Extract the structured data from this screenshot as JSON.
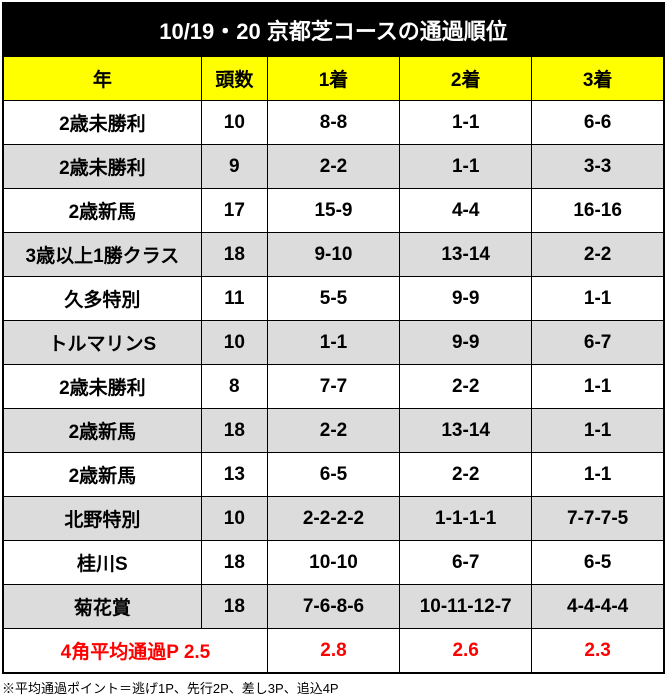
{
  "title": "10/19・20 京都芝コースの通過順位",
  "headers": {
    "year": "年",
    "num": "頭数",
    "p1": "1着",
    "p2": "2着",
    "p3": "3着"
  },
  "rows": [
    {
      "year": "2歳未勝利",
      "num": "10",
      "p1": "8-8",
      "p2": "1-1",
      "p3": "6-6",
      "shade": "white"
    },
    {
      "year": "2歳未勝利",
      "num": "9",
      "p1": "2-2",
      "p2": "1-1",
      "p3": "3-3",
      "shade": "gray"
    },
    {
      "year": "2歳新馬",
      "num": "17",
      "p1": "15-9",
      "p2": "4-4",
      "p3": "16-16",
      "shade": "white"
    },
    {
      "year": "3歳以上1勝クラス",
      "num": "18",
      "p1": "9-10",
      "p2": "13-14",
      "p3": "2-2",
      "shade": "gray"
    },
    {
      "year": "久多特別",
      "num": "11",
      "p1": "5-5",
      "p2": "9-9",
      "p3": "1-1",
      "shade": "white"
    },
    {
      "year": "トルマリンS",
      "num": "10",
      "p1": "1-1",
      "p2": "9-9",
      "p3": "6-7",
      "shade": "gray"
    },
    {
      "year": "2歳未勝利",
      "num": "8",
      "p1": "7-7",
      "p2": "2-2",
      "p3": "1-1",
      "shade": "white"
    },
    {
      "year": "2歳新馬",
      "num": "18",
      "p1": "2-2",
      "p2": "13-14",
      "p3": "1-1",
      "shade": "gray"
    },
    {
      "year": "2歳新馬",
      "num": "13",
      "p1": "6-5",
      "p2": "2-2",
      "p3": "1-1",
      "shade": "white"
    },
    {
      "year": "北野特別",
      "num": "10",
      "p1": "2-2-2-2",
      "p2": "1-1-1-1",
      "p3": "7-7-7-5",
      "shade": "gray"
    },
    {
      "year": "桂川S",
      "num": "18",
      "p1": "10-10",
      "p2": "6-7",
      "p3": "6-5",
      "shade": "white"
    },
    {
      "year": "菊花賞",
      "num": "18",
      "p1": "7-6-8-6",
      "p2": "10-11-12-7",
      "p3": "4-4-4-4",
      "shade": "gray"
    }
  ],
  "summary": {
    "label": "4角平均通過P 2.5",
    "p1": "2.8",
    "p2": "2.6",
    "p3": "2.3"
  },
  "footnote": "※平均通過ポイント＝逃げ1P、先行2P、差し3P、追込4P"
}
